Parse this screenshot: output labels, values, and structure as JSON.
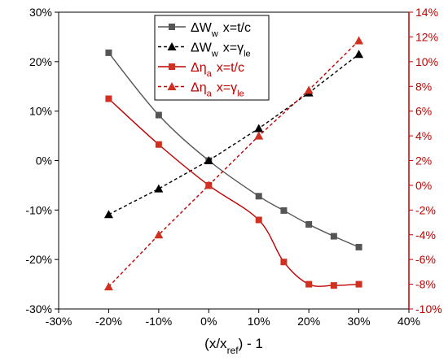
{
  "chart_data": {
    "type": "line",
    "xlabel": {
      "main": "(x/x",
      "sub": "ref",
      "tail": ") - 1"
    },
    "xlim": [
      -30,
      40
    ],
    "x_ticks": [
      "-30%",
      "-20%",
      "-10%",
      "0%",
      "10%",
      "20%",
      "30%",
      "40%"
    ],
    "ylim_left": [
      -30,
      30
    ],
    "y_left_ticks": [
      "-30%",
      "-20%",
      "-10%",
      "0%",
      "10%",
      "20%",
      "30%"
    ],
    "ylim_right": [
      -10,
      14
    ],
    "y_right_ticks": [
      "-10%",
      "-8%",
      "-6%",
      "-4%",
      "-2%",
      "0%",
      "2%",
      "4%",
      "6%",
      "8%",
      "10%",
      "12%",
      "14%"
    ],
    "right_axis_color": "#c00000",
    "legend_placement": "top-center",
    "series": [
      {
        "legend": {
          "sym": "ΔW",
          "sub": "w",
          "x": "x=t/c",
          "xsub": ""
        },
        "axis": "left",
        "marker": "square",
        "dash": false,
        "curve": "smooth",
        "color": "#555555",
        "marker_color": "#555555",
        "x": [
          -20,
          -10,
          0,
          10,
          15,
          20,
          25,
          30
        ],
        "y": [
          21.8,
          9.2,
          0,
          -7.2,
          -10.1,
          -12.9,
          -15.3,
          -17.5
        ]
      },
      {
        "legend": {
          "sym": "ΔW",
          "sub": "w",
          "x": "x=γ",
          "xsub": "le"
        },
        "axis": "left",
        "marker": "triangle",
        "dash": true,
        "curve": "straight",
        "color": "#000000",
        "marker_color": "#000000",
        "x": [
          -20,
          -10,
          0,
          10,
          20,
          30
        ],
        "y": [
          -10.9,
          -5.7,
          0,
          6.5,
          13.7,
          21.5
        ]
      },
      {
        "legend": {
          "sym": "Δη",
          "sub": "a",
          "x": "x=t/c",
          "xsub": ""
        },
        "axis": "right",
        "marker": "square",
        "dash": false,
        "curve": "smooth",
        "color": "#c00000",
        "marker_color": "#d03020",
        "x": [
          -20,
          -10,
          0,
          10,
          15,
          20,
          25,
          30
        ],
        "y": [
          7,
          3.3,
          0,
          -2.8,
          -6.2,
          -8.0,
          -8.1,
          -8.0
        ]
      },
      {
        "legend": {
          "sym": "Δη",
          "sub": "a",
          "x": "x=γ",
          "xsub": "le"
        },
        "axis": "right",
        "marker": "triangle",
        "dash": true,
        "curve": "straight",
        "color": "#c00000",
        "marker_color": "#d03020",
        "x": [
          -20,
          -10,
          0,
          10,
          20,
          30
        ],
        "y": [
          -8.2,
          -4.0,
          0,
          4.0,
          7.7,
          11.7
        ]
      }
    ]
  }
}
